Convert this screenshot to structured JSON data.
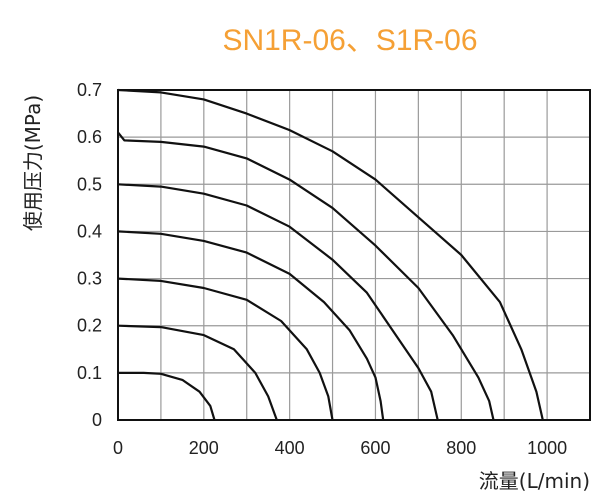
{
  "chart_data": {
    "type": "line",
    "title": "SN1R-06、S1R-06",
    "xlabel": "流量(L/min)",
    "ylabel": "使用压力(MPa)",
    "xlim": [
      0,
      1100
    ],
    "ylim": [
      0,
      0.7
    ],
    "grid": true,
    "x_ticks": [
      "0",
      "200",
      "400",
      "600",
      "800",
      "1000"
    ],
    "y_ticks": [
      "0",
      "0.1",
      "0.2",
      "0.3",
      "0.4",
      "0.5",
      "0.6",
      "0.7"
    ],
    "series": [
      {
        "points": [
          [
            0,
            0.1
          ],
          [
            60,
            0.1
          ],
          [
            100,
            0.098
          ],
          [
            150,
            0.085
          ],
          [
            190,
            0.06
          ],
          [
            215,
            0.03
          ],
          [
            225,
            0
          ]
        ]
      },
      {
        "points": [
          [
            0,
            0.2
          ],
          [
            100,
            0.197
          ],
          [
            200,
            0.18
          ],
          [
            270,
            0.15
          ],
          [
            320,
            0.1
          ],
          [
            350,
            0.05
          ],
          [
            370,
            0
          ]
        ]
      },
      {
        "points": [
          [
            0,
            0.3
          ],
          [
            100,
            0.295
          ],
          [
            200,
            0.28
          ],
          [
            300,
            0.255
          ],
          [
            380,
            0.21
          ],
          [
            440,
            0.15
          ],
          [
            470,
            0.1
          ],
          [
            490,
            0.05
          ],
          [
            500,
            0
          ]
        ]
      },
      {
        "points": [
          [
            0,
            0.4
          ],
          [
            100,
            0.395
          ],
          [
            200,
            0.38
          ],
          [
            300,
            0.355
          ],
          [
            400,
            0.31
          ],
          [
            480,
            0.25
          ],
          [
            540,
            0.19
          ],
          [
            580,
            0.13
          ],
          [
            600,
            0.09
          ],
          [
            612,
            0.04
          ],
          [
            618,
            0
          ]
        ]
      },
      {
        "points": [
          [
            0,
            0.5
          ],
          [
            100,
            0.495
          ],
          [
            200,
            0.48
          ],
          [
            300,
            0.455
          ],
          [
            400,
            0.41
          ],
          [
            500,
            0.34
          ],
          [
            580,
            0.27
          ],
          [
            640,
            0.19
          ],
          [
            700,
            0.11
          ],
          [
            730,
            0.06
          ],
          [
            745,
            0
          ]
        ]
      },
      {
        "points": [
          [
            0,
            0.61
          ],
          [
            15,
            0.593
          ],
          [
            100,
            0.59
          ],
          [
            200,
            0.58
          ],
          [
            300,
            0.555
          ],
          [
            400,
            0.51
          ],
          [
            500,
            0.45
          ],
          [
            600,
            0.37
          ],
          [
            700,
            0.28
          ],
          [
            780,
            0.18
          ],
          [
            840,
            0.09
          ],
          [
            865,
            0.04
          ],
          [
            875,
            0
          ]
        ]
      },
      {
        "points": [
          [
            0,
            0.7
          ],
          [
            100,
            0.695
          ],
          [
            200,
            0.68
          ],
          [
            300,
            0.65
          ],
          [
            400,
            0.615
          ],
          [
            500,
            0.57
          ],
          [
            600,
            0.51
          ],
          [
            700,
            0.43
          ],
          [
            800,
            0.35
          ],
          [
            890,
            0.25
          ],
          [
            940,
            0.15
          ],
          [
            975,
            0.06
          ],
          [
            990,
            0
          ]
        ]
      }
    ]
  },
  "colors": {
    "title": "#f5a035",
    "curve": "#111111",
    "grid": "#9a9a9a",
    "frame": "#111111"
  }
}
